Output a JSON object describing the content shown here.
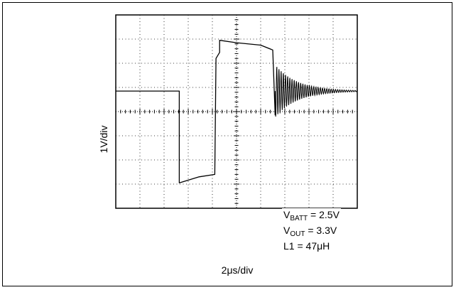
{
  "chart_data": {
    "type": "line",
    "title": "",
    "xlabel": "2μs/div",
    "ylabel": "1V/div",
    "x_divisions": 10,
    "y_divisions": 8,
    "grid": true,
    "grid_style": "dotted",
    "center_axes_ticked": true,
    "x_range_div": [
      0,
      10
    ],
    "y_range_div": [
      -4,
      4
    ],
    "series": [
      {
        "values_note": "trace in divisions (x: div from left, y: div from center axis)",
        "points": [
          [
            0,
            0.85
          ],
          [
            1.5,
            0.85
          ],
          [
            2.63,
            0.85
          ],
          [
            2.63,
            -2.95
          ],
          [
            3.45,
            -2.7
          ],
          [
            4.1,
            -2.6
          ],
          [
            4.15,
            2.2
          ],
          [
            4.3,
            2.45
          ],
          [
            4.3,
            2.95
          ],
          [
            5.0,
            2.85
          ],
          [
            6.0,
            2.75
          ],
          [
            6.5,
            2.55
          ],
          [
            6.6,
            -0.15
          ]
        ],
        "ringing": {
          "start_div": 6.6,
          "settle_value_div": 0.85,
          "initial_amplitude_div": 1.1,
          "decay_div": 0.9,
          "period_div": 0.09
        },
        "color": "#000000"
      }
    ],
    "annotations": {
      "vbatt": {
        "var": "V",
        "sub": "BATT",
        "rest": " = 2.5V"
      },
      "vout": {
        "var": "V",
        "sub": "OUT",
        "rest": " = 3.3V"
      },
      "l1": {
        "text": "L1 = 47μH"
      }
    }
  }
}
